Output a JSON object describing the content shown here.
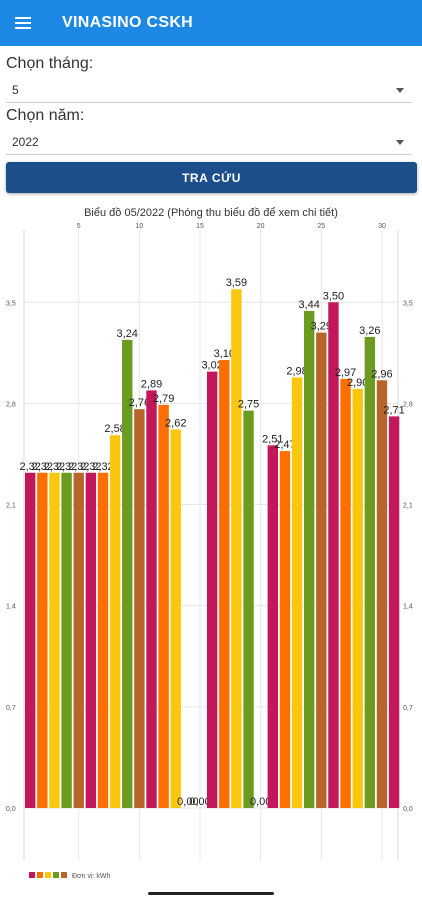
{
  "app": {
    "title": "VINASINO CSKH",
    "menu_icon": "hamburger-menu-icon"
  },
  "form": {
    "month_label": "Chọn tháng:",
    "month_value": "5",
    "year_label": "Chọn năm:",
    "year_value": "2022",
    "search_label": "TRA CỨU"
  },
  "chart_data": {
    "type": "bar",
    "title": "Biểu đồ 05/2022 (Phóng thu biểu đồ để xem chi tiết)",
    "x": [
      1,
      2,
      3,
      4,
      5,
      6,
      7,
      8,
      9,
      10,
      11,
      12,
      13,
      14,
      15,
      16,
      17,
      18,
      19,
      20,
      21,
      22,
      23,
      24,
      25,
      26,
      27,
      28,
      29,
      30,
      31
    ],
    "values": [
      2.32,
      2.32,
      2.32,
      2.32,
      2.32,
      2.32,
      2.32,
      2.58,
      3.24,
      2.76,
      2.89,
      2.79,
      2.62,
      0.0,
      0.0,
      3.02,
      3.1,
      3.59,
      2.75,
      0.0,
      2.51,
      2.47,
      2.98,
      3.44,
      3.29,
      3.5,
      2.97,
      2.9,
      3.26,
      2.96,
      2.71
    ],
    "labels": [
      "2,32",
      "2,32",
      "2,32",
      "2,32",
      "2,32",
      "2,32",
      "2,32",
      "2,58",
      "3,24",
      "2,76",
      "2,89",
      "2,79",
      "2,62",
      "0,00",
      "0,00",
      "3,02",
      "3,10",
      "3,59",
      "2,75",
      "0,00",
      "2,51",
      "2,47",
      "2,98",
      "3,44",
      "3,29",
      "3,50",
      "2,97",
      "2,90",
      "3,26",
      "2,96",
      "2,71"
    ],
    "x_ticks": [
      "5",
      "10",
      "15",
      "20",
      "25",
      "30"
    ],
    "y_ticks": [
      "0,0",
      "0,7",
      "1,4",
      "2,1",
      "2,8",
      "3,5"
    ],
    "ylim": [
      0,
      4.0
    ],
    "palette": [
      "#c2185b",
      "#ff6f00",
      "#f9c80e",
      "#6b9c1f",
      "#b7652b"
    ],
    "legend": {
      "label": "Đơn vị: kWh",
      "position": "bottom-left"
    },
    "grid": true
  }
}
